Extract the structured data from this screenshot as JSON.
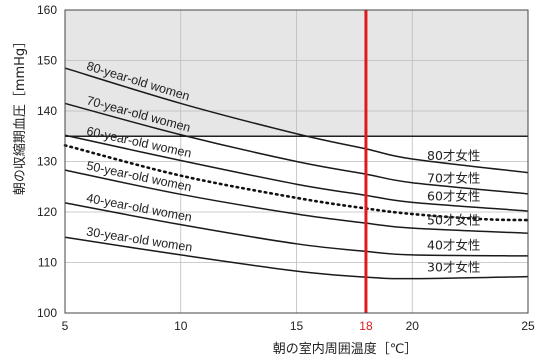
{
  "chart_data": {
    "type": "line",
    "xlabel": "朝の室内周囲温度［℃］",
    "ylabel": "朝の収縮期血圧［mmHg］",
    "xlim": [
      5,
      25
    ],
    "ylim": [
      100,
      160
    ],
    "xticks": [
      "5",
      "10",
      "15",
      "18",
      "20",
      "25"
    ],
    "yticks": [
      "100",
      "110",
      "120",
      "130",
      "140",
      "150",
      "160"
    ],
    "threshold": {
      "y": 135,
      "shaded_above": true,
      "color": "#e6e6e6"
    },
    "vertical_marker": {
      "x": 18,
      "label": "18",
      "color": "#e0191c"
    },
    "grid": true,
    "series": [
      {
        "name": "80-year-old women",
        "jp_name": "80才女性",
        "x": [
          5,
          10,
          15,
          18,
          20,
          25
        ],
        "y": [
          148.5,
          141.5,
          135.5,
          132.5,
          130.5,
          127.8
        ]
      },
      {
        "name": "70-year-old women",
        "jp_name": "70才女性",
        "x": [
          5,
          10,
          15,
          18,
          20,
          25
        ],
        "y": [
          141.5,
          135.3,
          130.0,
          127.5,
          125.8,
          123.6
        ]
      },
      {
        "name": "60-year-old women",
        "jp_name": "60才女性",
        "x": [
          5,
          10,
          15,
          18,
          20,
          25
        ],
        "y": [
          135.2,
          130.2,
          125.5,
          123.3,
          121.9,
          120.2
        ]
      },
      {
        "name": "50-year-old women",
        "jp_name": "50才女性",
        "x": [
          5,
          10,
          15,
          18,
          20,
          25
        ],
        "y": [
          128.3,
          123.5,
          119.6,
          117.8,
          116.8,
          115.8
        ]
      },
      {
        "name": "40-year-old women",
        "jp_name": "40才女性",
        "x": [
          5,
          10,
          15,
          18,
          20,
          25
        ],
        "y": [
          121.8,
          117.5,
          113.7,
          112.2,
          111.5,
          111.3
        ]
      },
      {
        "name": "30-year-old women",
        "jp_name": "30才女性",
        "x": [
          5,
          10,
          15,
          18,
          20,
          25
        ],
        "y": [
          115.0,
          111.5,
          108.3,
          107.1,
          106.8,
          107.2
        ]
      }
    ],
    "dotted_series": {
      "x": [
        5,
        10,
        15,
        18,
        20,
        23,
        25
      ],
      "y": [
        133.2,
        127.2,
        122.8,
        120.7,
        119.6,
        118.6,
        118.4
      ]
    }
  }
}
